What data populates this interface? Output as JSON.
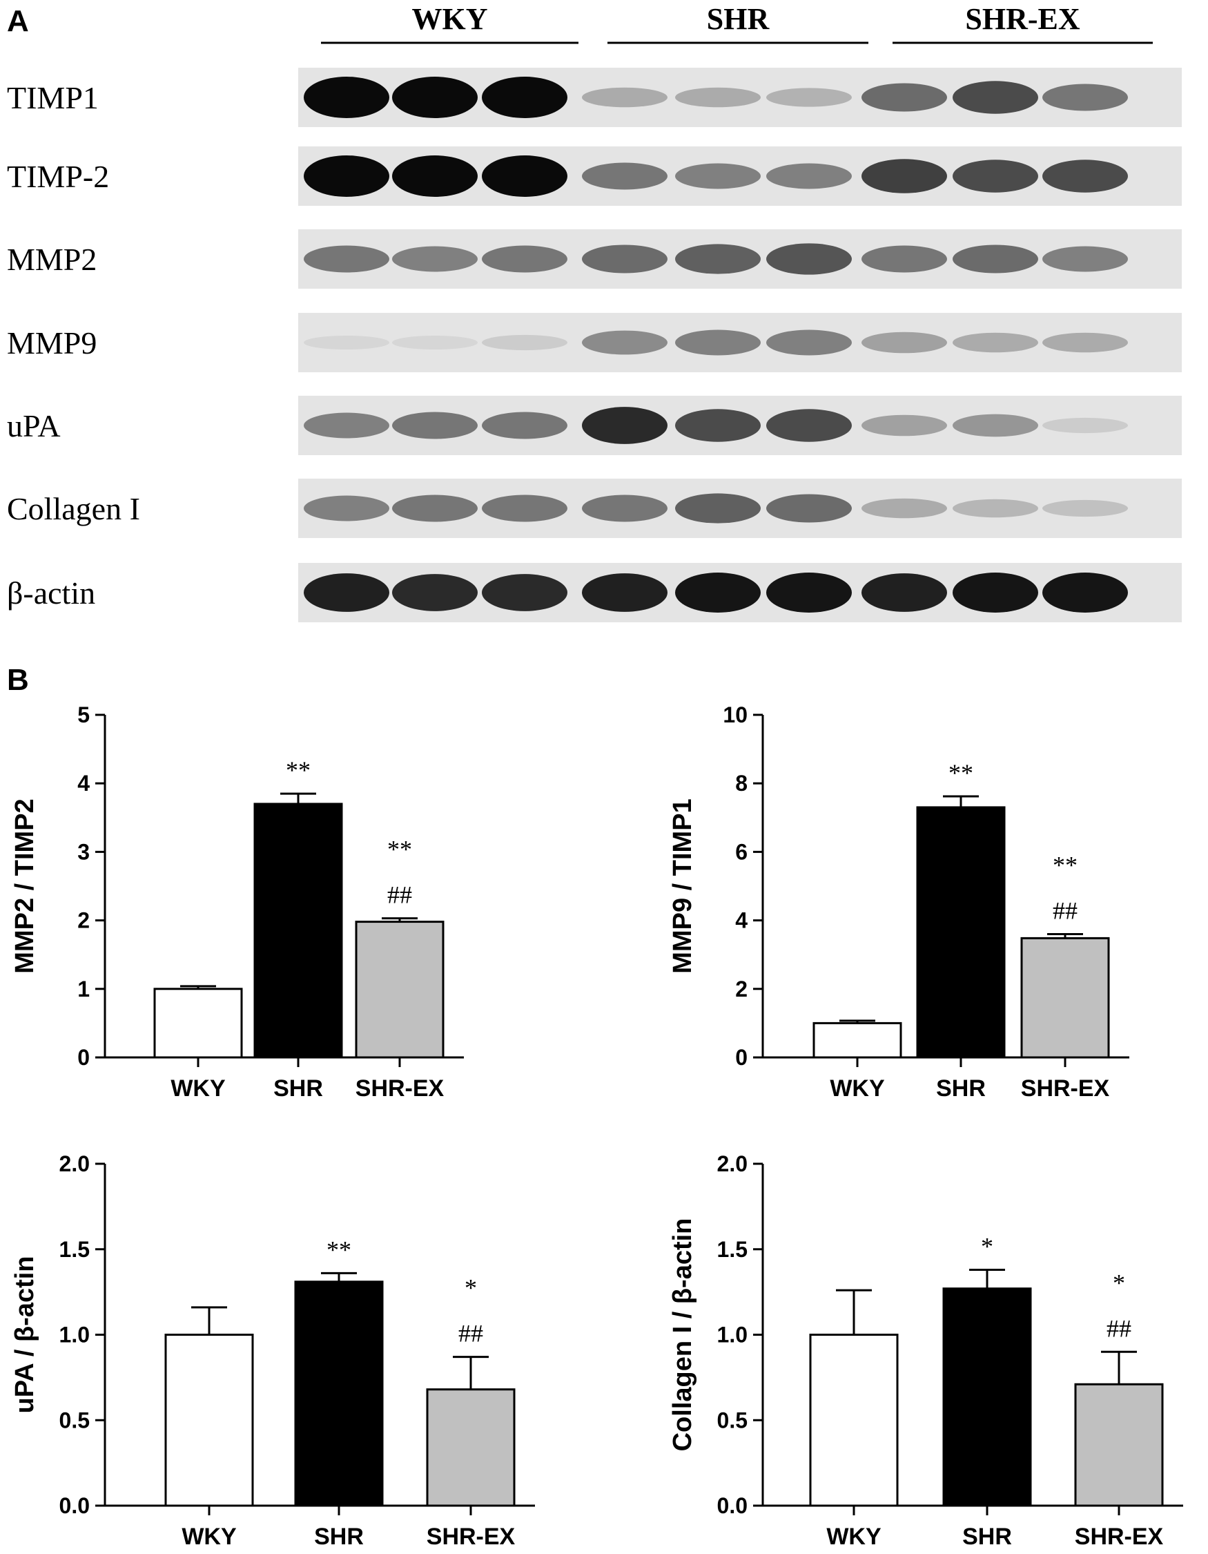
{
  "panel_a_label": "A",
  "panel_b_label": "B",
  "blot": {
    "groups": [
      "WKY",
      "SHR",
      "SHR-EX"
    ],
    "lanes_per_group": 3,
    "rows": [
      {
        "label": "TIMP1",
        "intensity": [
          1.0,
          1.0,
          1.0,
          0.25,
          0.25,
          0.22,
          0.55,
          0.7,
          0.5
        ]
      },
      {
        "label": "TIMP-2",
        "intensity": [
          1.0,
          1.0,
          1.0,
          0.5,
          0.45,
          0.45,
          0.75,
          0.7,
          0.7
        ]
      },
      {
        "label": "MMP2",
        "intensity": [
          0.5,
          0.45,
          0.5,
          0.55,
          0.6,
          0.65,
          0.5,
          0.55,
          0.45
        ]
      },
      {
        "label": "MMP9",
        "intensity": [
          0.05,
          0.05,
          0.1,
          0.4,
          0.45,
          0.45,
          0.3,
          0.25,
          0.25
        ]
      },
      {
        "label": "uPA",
        "intensity": [
          0.45,
          0.5,
          0.5,
          0.85,
          0.7,
          0.7,
          0.3,
          0.35,
          0.1
        ]
      },
      {
        "label": "Collagen I",
        "intensity": [
          0.45,
          0.5,
          0.5,
          0.5,
          0.6,
          0.55,
          0.25,
          0.2,
          0.15
        ]
      },
      {
        "label": "β-actin",
        "intensity": [
          0.9,
          0.85,
          0.85,
          0.9,
          0.95,
          0.95,
          0.9,
          0.95,
          0.95
        ]
      }
    ]
  },
  "chart_data": [
    {
      "type": "bar",
      "categories": [
        "WKY",
        "SHR",
        "SHR-EX"
      ],
      "values": [
        1.0,
        3.7,
        1.98
      ],
      "errors": [
        0.04,
        0.15,
        0.05
      ],
      "bar_colors": [
        "#ffffff",
        "#000000",
        "#c0c0c0"
      ],
      "significance": [
        [],
        [
          "**"
        ],
        [
          "**",
          "##"
        ]
      ],
      "ylabel": "MMP2 / TIMP2",
      "ylim": [
        0,
        5
      ],
      "yticks": [
        "0",
        "1",
        "2",
        "3",
        "4",
        "5"
      ],
      "ytick_values": [
        0,
        1,
        2,
        3,
        4,
        5
      ]
    },
    {
      "type": "bar",
      "categories": [
        "WKY",
        "SHR",
        "SHR-EX"
      ],
      "values": [
        1.0,
        7.3,
        3.48
      ],
      "errors": [
        0.07,
        0.32,
        0.12
      ],
      "bar_colors": [
        "#ffffff",
        "#000000",
        "#c0c0c0"
      ],
      "significance": [
        [],
        [
          "**"
        ],
        [
          "**",
          "##"
        ]
      ],
      "ylabel": "MMP9 / TIMP1",
      "ylim": [
        0,
        10
      ],
      "yticks": [
        "0",
        "2",
        "4",
        "6",
        "8",
        "10"
      ],
      "ytick_values": [
        0,
        2,
        4,
        6,
        8,
        10
      ]
    },
    {
      "type": "bar",
      "categories": [
        "WKY",
        "SHR",
        "SHR-EX"
      ],
      "values": [
        1.0,
        1.31,
        0.68
      ],
      "errors": [
        0.16,
        0.05,
        0.19
      ],
      "bar_colors": [
        "#ffffff",
        "#000000",
        "#c0c0c0"
      ],
      "significance": [
        [],
        [
          "**"
        ],
        [
          "*",
          "##"
        ]
      ],
      "ylabel": "uPA / β-actin",
      "ylim": [
        0,
        2.0
      ],
      "yticks": [
        "0.0",
        "0.5",
        "1.0",
        "1.5",
        "2.0"
      ],
      "ytick_values": [
        0,
        0.5,
        1.0,
        1.5,
        2.0
      ]
    },
    {
      "type": "bar",
      "categories": [
        "WKY",
        "SHR",
        "SHR-EX"
      ],
      "values": [
        1.0,
        1.27,
        0.71
      ],
      "errors": [
        0.26,
        0.11,
        0.19
      ],
      "bar_colors": [
        "#ffffff",
        "#000000",
        "#c0c0c0"
      ],
      "significance": [
        [],
        [
          "*"
        ],
        [
          "*",
          "##"
        ]
      ],
      "ylabel": "Collagen I / β-actin",
      "ylim": [
        0,
        2.0
      ],
      "yticks": [
        "0.0",
        "0.5",
        "1.0",
        "1.5",
        "2.0"
      ],
      "ytick_values": [
        0,
        0.5,
        1.0,
        1.5,
        2.0
      ]
    }
  ]
}
